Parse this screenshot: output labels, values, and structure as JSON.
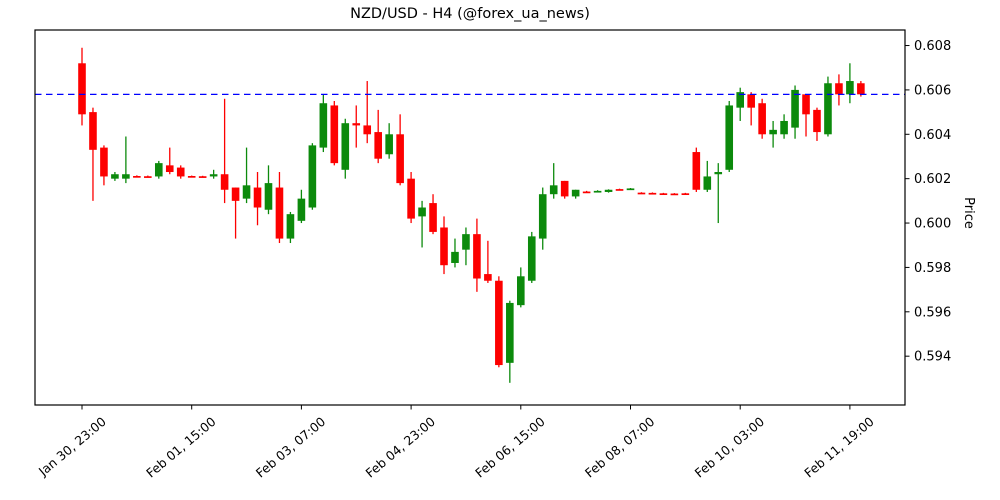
{
  "chart": {
    "title": "NZD/USD - H4 (@forex_ua_news)",
    "ylabel_right": "Price",
    "colors": {
      "up": "#0c8a0c",
      "down": "#fd0000",
      "hline": "#0000ff",
      "axis": "#000000",
      "background": "#ffffff"
    },
    "hline": {
      "price": 0.6058,
      "style": "dashed"
    },
    "y_axis": {
      "side": "right",
      "min": 0.5918,
      "max": 0.6087,
      "ticks": [
        0.594,
        0.596,
        0.598,
        0.6,
        0.602,
        0.604,
        0.606,
        0.608
      ]
    },
    "x_axis": {
      "rotation": -40,
      "tick_indices": [
        0,
        10,
        20,
        30,
        40,
        50,
        60,
        70
      ],
      "tick_labels": [
        "Jan 30, 23:00",
        "Feb 01, 15:00",
        "Feb 03, 07:00",
        "Feb 04, 23:00",
        "Feb 06, 15:00",
        "Feb 08, 07:00",
        "Feb 10, 03:00",
        "Feb 11, 19:00"
      ]
    }
  },
  "chart_data": {
    "type": "candlestick",
    "symbol": "NZD/USD",
    "timeframe": "H4",
    "source_handle": "@forex_ua_news",
    "title": "NZD/USD - H4 (@forex_ua_news)",
    "ylabel": "Price",
    "ylim": [
      0.5918,
      0.6087
    ],
    "grid": false,
    "resistance_line": 0.6058,
    "candles": [
      {
        "time": "Jan 30 23:00",
        "o": 0.6072,
        "h": 0.6079,
        "l": 0.6044,
        "c": 0.6049
      },
      {
        "time": "Jan 31 03:00",
        "o": 0.605,
        "h": 0.6052,
        "l": 0.601,
        "c": 0.6033
      },
      {
        "time": "Jan 31 07:00",
        "o": 0.6034,
        "h": 0.6035,
        "l": 0.6017,
        "c": 0.6021
      },
      {
        "time": "Jan 31 11:00",
        "o": 0.602,
        "h": 0.6023,
        "l": 0.6019,
        "c": 0.6022
      },
      {
        "time": "Jan 31 15:00",
        "o": 0.602,
        "h": 0.6039,
        "l": 0.6018,
        "c": 0.6022
      },
      {
        "time": "Jan 31 19:00",
        "o": 0.60212,
        "h": 0.60215,
        "l": 0.60208,
        "c": 0.6021
      },
      {
        "time": "Jan 31 23:00",
        "o": 0.60211,
        "h": 0.60214,
        "l": 0.60207,
        "c": 0.60209
      },
      {
        "time": "Feb 01 03:00",
        "o": 0.6021,
        "h": 0.6028,
        "l": 0.602,
        "c": 0.6027
      },
      {
        "time": "Feb 01 07:00",
        "o": 0.6026,
        "h": 0.6034,
        "l": 0.6022,
        "c": 0.6023
      },
      {
        "time": "Feb 01 11:00",
        "o": 0.6025,
        "h": 0.6026,
        "l": 0.602,
        "c": 0.6021
      },
      {
        "time": "Feb 01 15:00",
        "o": 0.60212,
        "h": 0.60214,
        "l": 0.60208,
        "c": 0.6021
      },
      {
        "time": "Feb 01 19:00",
        "o": 0.60211,
        "h": 0.60213,
        "l": 0.60207,
        "c": 0.60209
      },
      {
        "time": "Feb 01 23:00",
        "o": 0.6021,
        "h": 0.6024,
        "l": 0.602,
        "c": 0.6022
      },
      {
        "time": "Feb 02 03:00",
        "o": 0.6022,
        "h": 0.6056,
        "l": 0.6009,
        "c": 0.6015
      },
      {
        "time": "Feb 02 07:00",
        "o": 0.6016,
        "h": 0.6016,
        "l": 0.5993,
        "c": 0.601
      },
      {
        "time": "Feb 02 11:00",
        "o": 0.6011,
        "h": 0.6034,
        "l": 0.6009,
        "c": 0.6017
      },
      {
        "time": "Feb 02 15:00",
        "o": 0.6016,
        "h": 0.6023,
        "l": 0.5999,
        "c": 0.6007
      },
      {
        "time": "Feb 02 19:00",
        "o": 0.6006,
        "h": 0.6026,
        "l": 0.6004,
        "c": 0.6018
      },
      {
        "time": "Feb 02 23:00",
        "o": 0.6016,
        "h": 0.6023,
        "l": 0.5991,
        "c": 0.5993
      },
      {
        "time": "Feb 03 03:00",
        "o": 0.5993,
        "h": 0.6005,
        "l": 0.5991,
        "c": 0.6004
      },
      {
        "time": "Feb 03 07:00",
        "o": 0.6001,
        "h": 0.6015,
        "l": 0.6,
        "c": 0.6011
      },
      {
        "time": "Feb 03 11:00",
        "o": 0.6007,
        "h": 0.6036,
        "l": 0.6006,
        "c": 0.6035
      },
      {
        "time": "Feb 03 15:00",
        "o": 0.6034,
        "h": 0.6058,
        "l": 0.6032,
        "c": 0.6054
      },
      {
        "time": "Feb 03 19:00",
        "o": 0.6053,
        "h": 0.6055,
        "l": 0.6026,
        "c": 0.6027
      },
      {
        "time": "Feb 03 23:00",
        "o": 0.6024,
        "h": 0.6047,
        "l": 0.602,
        "c": 0.6045
      },
      {
        "time": "Feb 04 03:00",
        "o": 0.6045,
        "h": 0.6053,
        "l": 0.6034,
        "c": 0.6044
      },
      {
        "time": "Feb 04 07:00",
        "o": 0.6044,
        "h": 0.6064,
        "l": 0.6036,
        "c": 0.604
      },
      {
        "time": "Feb 04 11:00",
        "o": 0.6041,
        "h": 0.6051,
        "l": 0.6027,
        "c": 0.6029
      },
      {
        "time": "Feb 04 15:00",
        "o": 0.6031,
        "h": 0.6045,
        "l": 0.6029,
        "c": 0.604
      },
      {
        "time": "Feb 04 19:00",
        "o": 0.604,
        "h": 0.6049,
        "l": 0.6017,
        "c": 0.6018
      },
      {
        "time": "Feb 04 23:00",
        "o": 0.602,
        "h": 0.6023,
        "l": 0.6,
        "c": 0.6002
      },
      {
        "time": "Feb 05 03:00",
        "o": 0.6003,
        "h": 0.601,
        "l": 0.5989,
        "c": 0.6007
      },
      {
        "time": "Feb 05 07:00",
        "o": 0.6009,
        "h": 0.6013,
        "l": 0.5995,
        "c": 0.5996
      },
      {
        "time": "Feb 05 11:00",
        "o": 0.5998,
        "h": 0.6003,
        "l": 0.5977,
        "c": 0.5981
      },
      {
        "time": "Feb 05 15:00",
        "o": 0.5982,
        "h": 0.5993,
        "l": 0.598,
        "c": 0.5987
      },
      {
        "time": "Feb 05 19:00",
        "o": 0.5988,
        "h": 0.5998,
        "l": 0.5981,
        "c": 0.5995
      },
      {
        "time": "Feb 05 23:00",
        "o": 0.5995,
        "h": 0.6002,
        "l": 0.5969,
        "c": 0.5975
      },
      {
        "time": "Feb 06 03:00",
        "o": 0.5977,
        "h": 0.5992,
        "l": 0.5973,
        "c": 0.5974
      },
      {
        "time": "Feb 06 07:00",
        "o": 0.5974,
        "h": 0.5976,
        "l": 0.5935,
        "c": 0.5936
      },
      {
        "time": "Feb 06 11:00",
        "o": 0.5937,
        "h": 0.5965,
        "l": 0.5928,
        "c": 0.5964
      },
      {
        "time": "Feb 06 15:00",
        "o": 0.5963,
        "h": 0.598,
        "l": 0.5962,
        "c": 0.5976
      },
      {
        "time": "Feb 06 19:00",
        "o": 0.5974,
        "h": 0.5996,
        "l": 0.5973,
        "c": 0.5994
      },
      {
        "time": "Feb 06 23:00",
        "o": 0.5993,
        "h": 0.6016,
        "l": 0.5988,
        "c": 0.6013
      },
      {
        "time": "Feb 07 03:00",
        "o": 0.6013,
        "h": 0.6027,
        "l": 0.6011,
        "c": 0.6017
      },
      {
        "time": "Feb 07 07:00",
        "o": 0.6019,
        "h": 0.6019,
        "l": 0.6011,
        "c": 0.6012
      },
      {
        "time": "Feb 07 11:00",
        "o": 0.6012,
        "h": 0.6015,
        "l": 0.6011,
        "c": 0.6015
      },
      {
        "time": "Feb 07 15:00",
        "o": 0.60142,
        "h": 0.60145,
        "l": 0.60138,
        "c": 0.6014
      },
      {
        "time": "Feb 07 19:00",
        "o": 0.60142,
        "h": 0.60148,
        "l": 0.60138,
        "c": 0.60145
      },
      {
        "time": "Feb 07 23:00",
        "o": 0.6014,
        "h": 0.60152,
        "l": 0.60137,
        "c": 0.6015
      },
      {
        "time": "Feb 08 03:00",
        "o": 0.60153,
        "h": 0.60155,
        "l": 0.60149,
        "c": 0.60151
      },
      {
        "time": "Feb 08 07:00",
        "o": 0.60153,
        "h": 0.60158,
        "l": 0.60149,
        "c": 0.60156
      },
      {
        "time": "Feb 08 11:00",
        "o": 0.60137,
        "h": 0.60139,
        "l": 0.60132,
        "c": 0.60134
      },
      {
        "time": "Feb 08 15:00",
        "o": 0.60136,
        "h": 0.60138,
        "l": 0.60131,
        "c": 0.60133
      },
      {
        "time": "Feb 08 19:00",
        "o": 0.60134,
        "h": 0.60136,
        "l": 0.60129,
        "c": 0.60131
      },
      {
        "time": "Feb 08 23:00",
        "o": 0.60133,
        "h": 0.60135,
        "l": 0.60128,
        "c": 0.6013
      },
      {
        "time": "Feb 09 03:00",
        "o": 0.60134,
        "h": 0.60136,
        "l": 0.60129,
        "c": 0.60131
      },
      {
        "time": "Feb 09 11:00",
        "o": 0.6032,
        "h": 0.6034,
        "l": 0.6014,
        "c": 0.6015
      },
      {
        "time": "Feb 09 15:00",
        "o": 0.6015,
        "h": 0.6028,
        "l": 0.6014,
        "c": 0.6021
      },
      {
        "time": "Feb 09 19:00",
        "o": 0.6022,
        "h": 0.6027,
        "l": 0.6,
        "c": 0.6023
      },
      {
        "time": "Feb 09 23:00",
        "o": 0.6024,
        "h": 0.6055,
        "l": 0.6023,
        "c": 0.6053
      },
      {
        "time": "Feb 10 03:00",
        "o": 0.6052,
        "h": 0.6061,
        "l": 0.6046,
        "c": 0.6059
      },
      {
        "time": "Feb 10 07:00",
        "o": 0.6058,
        "h": 0.6059,
        "l": 0.6044,
        "c": 0.6052
      },
      {
        "time": "Feb 10 11:00",
        "o": 0.6054,
        "h": 0.6056,
        "l": 0.6038,
        "c": 0.604
      },
      {
        "time": "Feb 10 15:00",
        "o": 0.604,
        "h": 0.6046,
        "l": 0.6034,
        "c": 0.6042
      },
      {
        "time": "Feb 10 19:00",
        "o": 0.604,
        "h": 0.6049,
        "l": 0.6038,
        "c": 0.6046
      },
      {
        "time": "Feb 10 23:00",
        "o": 0.6043,
        "h": 0.6062,
        "l": 0.6038,
        "c": 0.606
      },
      {
        "time": "Feb 11 03:00",
        "o": 0.6058,
        "h": 0.6058,
        "l": 0.6039,
        "c": 0.6049
      },
      {
        "time": "Feb 11 07:00",
        "o": 0.6051,
        "h": 0.6052,
        "l": 0.6037,
        "c": 0.6041
      },
      {
        "time": "Feb 11 11:00",
        "o": 0.604,
        "h": 0.6066,
        "l": 0.6039,
        "c": 0.6063
      },
      {
        "time": "Feb 11 15:00",
        "o": 0.6063,
        "h": 0.6067,
        "l": 0.6053,
        "c": 0.6058
      },
      {
        "time": "Feb 11 19:00",
        "o": 0.6058,
        "h": 0.6072,
        "l": 0.6054,
        "c": 0.6064
      },
      {
        "time": "Feb 11 23:00",
        "o": 0.6063,
        "h": 0.6064,
        "l": 0.6057,
        "c": 0.6058
      }
    ]
  }
}
